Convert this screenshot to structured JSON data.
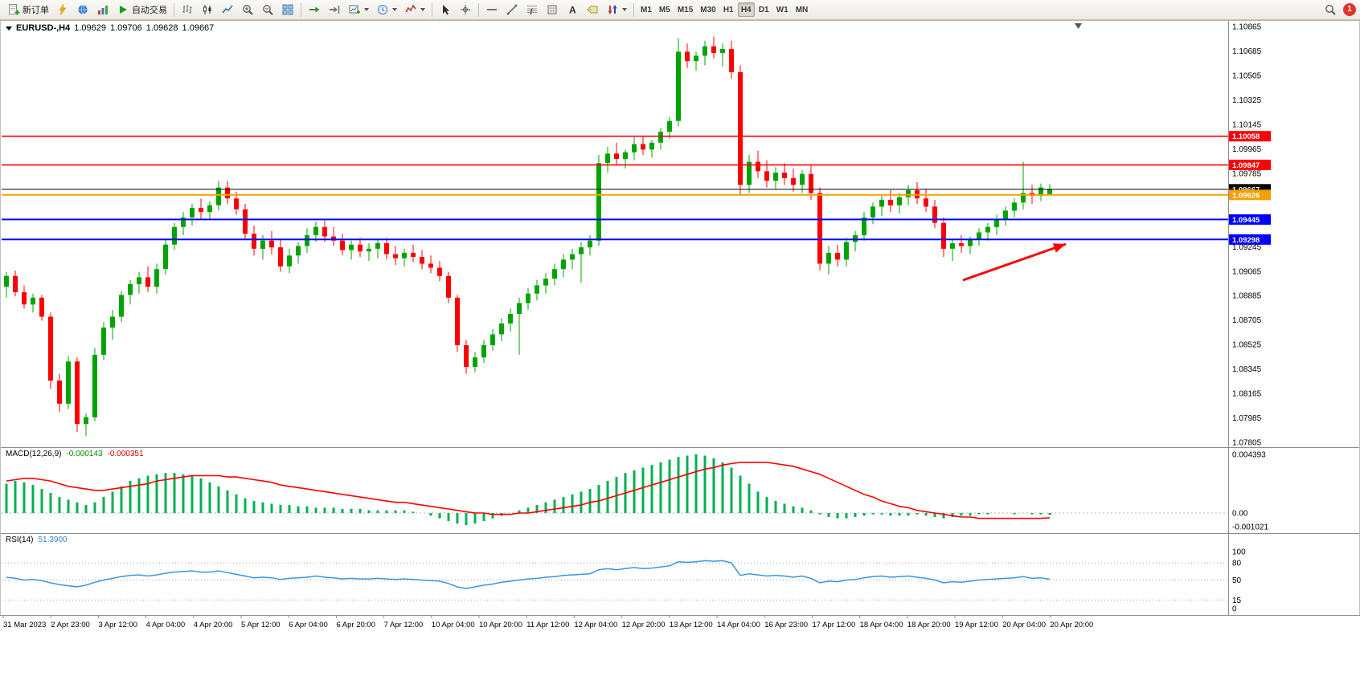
{
  "toolbar": {
    "new_order_label": "新订单",
    "autotrading_label": "自动交易",
    "timeframes": [
      "M1",
      "M5",
      "M15",
      "M30",
      "H1",
      "H4",
      "D1",
      "W1",
      "MN"
    ],
    "active_timeframe": "H4",
    "notification_count": "1",
    "icon_names": [
      "new-order-icon",
      "lightning-icon",
      "globe-icon",
      "signals-icon",
      "autotrading-icon",
      "bars-chart-icon",
      "candlestick-chart-icon",
      "line-chart-icon",
      "zoom-in-icon",
      "zoom-out-icon",
      "tile-windows-icon",
      "auto-scroll-icon",
      "chart-shift-icon",
      "new-chart-icon",
      "period-icon",
      "indicators-icon",
      "cursor-icon",
      "crosshair-icon",
      "horizontal-line-icon",
      "trendline-icon",
      "fibonacci-icon",
      "grid-icon",
      "text-icon",
      "label-icon",
      "arrows-icon",
      "search-icon"
    ]
  },
  "icons": {
    "text_tool": "A",
    "fibo_tool": "ƒ"
  },
  "chart": {
    "symbol_tf": "EURUSD-,H4",
    "open": "1.09629",
    "high": "1.09706",
    "low": "1.09628",
    "close": "1.09667"
  },
  "indicators": {
    "macd": {
      "name": "MACD(12,26,9)",
      "value_main": "-0.000143",
      "value_signal": "-0.000351"
    },
    "rsi": {
      "name": "RSI(14)",
      "value": "51.3900"
    }
  },
  "chart_data": {
    "type": "candlestick",
    "symbol": "EURUSD-",
    "timeframe": "H4",
    "current": {
      "open": 1.09629,
      "high": 1.09706,
      "low": 1.09628,
      "close": 1.09667
    },
    "colors": {
      "up": "#00a400",
      "down": "#ff0000",
      "macd_hist": "#00b050",
      "macd_signal": "#ff0000",
      "rsi": "#3a96dd"
    },
    "price_axis": {
      "top": 1.10883,
      "bottom": 1.07793,
      "ticks": [
        1.10865,
        1.10685,
        1.10505,
        1.10325,
        1.10145,
        1.09965,
        1.09785,
        1.09245,
        1.09065,
        1.08885,
        1.08705,
        1.08525,
        1.08345,
        1.08165,
        1.07985,
        1.07805
      ]
    },
    "price_lines": [
      {
        "price": 1.10058,
        "label": "1.10058",
        "color": "#ff0000",
        "width": 1.6
      },
      {
        "price": 1.09847,
        "label": "1.09847",
        "color": "#ff0000",
        "width": 1.6
      },
      {
        "price": 1.09667,
        "label": "1.09667",
        "color": "#000000",
        "width": 1
      },
      {
        "price": 1.09626,
        "label": "1.09626",
        "color": "#f5a000",
        "width": 2
      },
      {
        "price": 1.09445,
        "label": "1.09445",
        "color": "#0000ff",
        "width": 2
      },
      {
        "price": 1.09298,
        "label": "1.09298",
        "color": "#0000ff",
        "width": 2
      }
    ],
    "candles": [
      [
        1.0895,
        1.0906,
        1.0887,
        1.0903
      ],
      [
        1.0903,
        1.0907,
        1.0888,
        1.0891
      ],
      [
        1.0891,
        1.0896,
        1.0879,
        1.0882
      ],
      [
        1.0882,
        1.089,
        1.0876,
        1.0887
      ],
      [
        1.0887,
        1.0889,
        1.087,
        1.0873
      ],
      [
        1.0873,
        1.0876,
        1.082,
        1.0826
      ],
      [
        1.0826,
        1.0831,
        1.0803,
        1.0809
      ],
      [
        1.0809,
        1.0844,
        1.0805,
        1.084
      ],
      [
        1.084,
        1.0843,
        1.0788,
        1.0794
      ],
      [
        1.0794,
        1.0802,
        1.0785,
        1.0799
      ],
      [
        1.0799,
        1.085,
        1.0796,
        1.0845
      ],
      [
        1.0845,
        1.0869,
        1.0841,
        1.0865
      ],
      [
        1.0865,
        1.0878,
        1.0856,
        1.0873
      ],
      [
        1.0873,
        1.0892,
        1.0869,
        1.0889
      ],
      [
        1.0889,
        1.09,
        1.0882,
        1.0897
      ],
      [
        1.0897,
        1.0906,
        1.089,
        1.0902
      ],
      [
        1.0902,
        1.091,
        1.0891,
        1.0895
      ],
      [
        1.0895,
        1.0912,
        1.089,
        1.0908
      ],
      [
        1.0908,
        1.093,
        1.0904,
        1.0926
      ],
      [
        1.0926,
        1.0942,
        1.0922,
        1.0939
      ],
      [
        1.0939,
        1.095,
        1.0933,
        1.0946
      ],
      [
        1.0946,
        1.0956,
        1.094,
        1.0953
      ],
      [
        1.0953,
        1.096,
        1.0945,
        1.095
      ],
      [
        1.095,
        1.0958,
        1.0944,
        1.0955
      ],
      [
        1.0955,
        1.0973,
        1.0951,
        1.0968
      ],
      [
        1.0968,
        1.0973,
        1.0956,
        1.096
      ],
      [
        1.096,
        1.0965,
        1.0948,
        1.0952
      ],
      [
        1.0952,
        1.0956,
        1.093,
        1.0934
      ],
      [
        1.0934,
        1.094,
        1.0918,
        1.0923
      ],
      [
        1.0923,
        1.0933,
        1.0915,
        1.0929
      ],
      [
        1.0929,
        1.0936,
        1.0919,
        1.0924
      ],
      [
        1.0924,
        1.093,
        1.0906,
        1.091
      ],
      [
        1.091,
        1.0923,
        1.0905,
        1.0918
      ],
      [
        1.0918,
        1.0928,
        1.0912,
        1.0925
      ],
      [
        1.0925,
        1.0938,
        1.092,
        1.0933
      ],
      [
        1.0933,
        1.0943,
        1.0928,
        1.0939
      ],
      [
        1.0939,
        1.0944,
        1.0928,
        1.0932
      ],
      [
        1.0932,
        1.0939,
        1.0925,
        1.0929
      ],
      [
        1.0929,
        1.0934,
        1.0918,
        1.0922
      ],
      [
        1.0922,
        1.0929,
        1.0915,
        1.0926
      ],
      [
        1.0926,
        1.0931,
        1.0917,
        1.0921
      ],
      [
        1.0921,
        1.0927,
        1.0914,
        1.0923
      ],
      [
        1.0923,
        1.093,
        1.0916,
        1.0927
      ],
      [
        1.0927,
        1.0931,
        1.0915,
        1.0919
      ],
      [
        1.0919,
        1.0925,
        1.0911,
        1.0916
      ],
      [
        1.0916,
        1.0923,
        1.091,
        1.092
      ],
      [
        1.092,
        1.0926,
        1.0913,
        1.0917
      ],
      [
        1.0917,
        1.0922,
        1.0908,
        1.0912
      ],
      [
        1.0912,
        1.0918,
        1.0905,
        1.0909
      ],
      [
        1.0909,
        1.0914,
        1.0899,
        1.0903
      ],
      [
        1.0903,
        1.0906,
        1.0883,
        1.0887
      ],
      [
        1.0887,
        1.0889,
        1.0847,
        1.0852
      ],
      [
        1.0852,
        1.0856,
        1.0831,
        1.0836
      ],
      [
        1.0836,
        1.0847,
        1.0832,
        1.0843
      ],
      [
        1.0843,
        1.0856,
        1.0839,
        1.0852
      ],
      [
        1.0852,
        1.0864,
        1.0848,
        1.086
      ],
      [
        1.086,
        1.0872,
        1.0855,
        1.0868
      ],
      [
        1.0868,
        1.0879,
        1.0862,
        1.0875
      ],
      [
        1.0875,
        1.0887,
        1.0845,
        1.0883
      ],
      [
        1.0883,
        1.0894,
        1.0878,
        1.089
      ],
      [
        1.089,
        1.09,
        1.0885,
        1.0896
      ],
      [
        1.0896,
        1.0905,
        1.089,
        1.0901
      ],
      [
        1.0901,
        1.0912,
        1.0896,
        1.0908
      ],
      [
        1.0908,
        1.0919,
        1.0902,
        1.0915
      ],
      [
        1.0915,
        1.0923,
        1.0908,
        1.0919
      ],
      [
        1.0919,
        1.0928,
        1.0898,
        1.0924
      ],
      [
        1.0924,
        1.0933,
        1.0918,
        1.0929
      ],
      [
        1.0929,
        1.0992,
        1.0925,
        1.0986
      ],
      [
        1.0986,
        1.0998,
        1.0979,
        1.0993
      ],
      [
        1.0993,
        1.1001,
        1.0985,
        1.0989
      ],
      [
        1.0989,
        1.0996,
        1.0982,
        1.0994
      ],
      [
        1.0994,
        1.1005,
        1.0988,
        1.1
      ],
      [
        1.1,
        1.1006,
        1.0992,
        1.0996
      ],
      [
        1.0996,
        1.1003,
        1.099,
        1.1001
      ],
      [
        1.1001,
        1.1012,
        1.0996,
        1.1009
      ],
      [
        1.1009,
        1.102,
        1.1004,
        1.1017
      ],
      [
        1.1017,
        1.1078,
        1.1013,
        1.1068
      ],
      [
        1.1068,
        1.1074,
        1.1056,
        1.1061
      ],
      [
        1.1061,
        1.1068,
        1.1054,
        1.1065
      ],
      [
        1.1065,
        1.1076,
        1.1058,
        1.1072
      ],
      [
        1.1072,
        1.1079,
        1.1063,
        1.1067
      ],
      [
        1.1067,
        1.1074,
        1.1057,
        1.107
      ],
      [
        1.107,
        1.1076,
        1.1048,
        1.1053
      ],
      [
        1.1053,
        1.1058,
        1.0963,
        1.097
      ],
      [
        1.097,
        1.0992,
        1.0964,
        1.0987
      ],
      [
        1.0987,
        1.0995,
        1.0975,
        1.098
      ],
      [
        1.098,
        1.0988,
        1.0968,
        1.0973
      ],
      [
        1.0973,
        1.0983,
        1.0967,
        1.0979
      ],
      [
        1.0979,
        1.0986,
        1.097,
        1.0975
      ],
      [
        1.0975,
        1.0982,
        1.0965,
        1.097
      ],
      [
        1.097,
        1.0981,
        1.0964,
        1.0978
      ],
      [
        1.0978,
        1.0985,
        1.0959,
        1.0964
      ],
      [
        1.0964,
        1.0968,
        1.0907,
        1.0912
      ],
      [
        1.0912,
        1.0925,
        1.0904,
        1.092
      ],
      [
        1.092,
        1.0926,
        1.091,
        1.0915
      ],
      [
        1.0915,
        1.0931,
        1.091,
        1.0928
      ],
      [
        1.0928,
        1.0936,
        1.0921,
        1.0933
      ],
      [
        1.0933,
        1.095,
        1.0929,
        1.0946
      ],
      [
        1.0946,
        1.0957,
        1.0941,
        1.0954
      ],
      [
        1.0954,
        1.0962,
        1.0947,
        1.0959
      ],
      [
        1.0959,
        1.0966,
        1.095,
        1.0955
      ],
      [
        1.0955,
        1.0964,
        1.0949,
        1.0961
      ],
      [
        1.0961,
        1.097,
        1.0955,
        1.0966
      ],
      [
        1.0966,
        1.0972,
        1.0956,
        1.096
      ],
      [
        1.096,
        1.0967,
        1.095,
        1.0954
      ],
      [
        1.0954,
        1.0959,
        1.0938,
        1.0942
      ],
      [
        1.0942,
        1.0946,
        1.0917,
        1.0923
      ],
      [
        1.0923,
        1.093,
        1.0914,
        1.0927
      ],
      [
        1.0927,
        1.0933,
        1.092,
        1.0925
      ],
      [
        1.0925,
        1.0932,
        1.0919,
        1.093
      ],
      [
        1.093,
        1.0938,
        1.0925,
        1.0935
      ],
      [
        1.0935,
        1.0942,
        1.0929,
        1.0939
      ],
      [
        1.0939,
        1.0948,
        1.0933,
        1.0945
      ],
      [
        1.0945,
        1.0954,
        1.094,
        1.0951
      ],
      [
        1.0951,
        1.096,
        1.0946,
        1.0957
      ],
      [
        1.0957,
        1.0987,
        1.0952,
        1.0964
      ],
      [
        1.0964,
        1.097,
        1.0956,
        1.0962
      ],
      [
        1.0962,
        1.0971,
        1.0958,
        1.0968
      ],
      [
        1.09629,
        1.09706,
        1.09628,
        1.09667
      ]
    ],
    "macd": {
      "max": 0.004393,
      "min": -0.001021,
      "axis": [
        {
          "v": 0.004393,
          "label": "0.004393"
        },
        {
          "v": 0,
          "label": "0.00"
        },
        {
          "v": -0.001021,
          "label": "-0.001021"
        }
      ],
      "histogram": [
        0.0022,
        0.0024,
        0.0023,
        0.0021,
        0.0018,
        0.0015,
        0.0012,
        0.001,
        0.0008,
        0.0006,
        0.0008,
        0.0012,
        0.0016,
        0.002,
        0.0024,
        0.0026,
        0.0028,
        0.0029,
        0.003,
        0.003,
        0.0029,
        0.0028,
        0.0026,
        0.0023,
        0.002,
        0.0017,
        0.0014,
        0.0011,
        0.0009,
        0.0008,
        0.0007,
        0.0006,
        0.0006,
        0.0005,
        0.0005,
        0.0004,
        0.0004,
        0.0004,
        0.0003,
        0.0003,
        0.0003,
        0.0002,
        0.0002,
        0.0002,
        0.0002,
        0.0002,
        0.0001,
        0.0,
        -0.0002,
        -0.0004,
        -0.0006,
        -0.0008,
        -0.0009,
        -0.0008,
        -0.0006,
        -0.0004,
        -0.0002,
        0.0,
        0.0002,
        0.0004,
        0.0006,
        0.0008,
        0.001,
        0.0012,
        0.0014,
        0.0016,
        0.0018,
        0.0021,
        0.0024,
        0.0027,
        0.003,
        0.0032,
        0.0034,
        0.0036,
        0.0038,
        0.004,
        0.0042,
        0.0043,
        0.0044,
        0.0043,
        0.0041,
        0.0038,
        0.0034,
        0.0028,
        0.0022,
        0.0016,
        0.0012,
        0.0009,
        0.0007,
        0.0005,
        0.0004,
        0.0002,
        -0.0001,
        -0.0003,
        -0.0004,
        -0.0004,
        -0.0003,
        -0.0002,
        -0.0001,
        -0.0001,
        -0.0002,
        -0.0002,
        -0.0002,
        -0.0001,
        -0.0002,
        -0.0003,
        -0.0004,
        -0.0003,
        -0.0002,
        -0.0002,
        -0.0001,
        -0.0001,
        0.0,
        0.0,
        -0.0001,
        0.0,
        -0.0001,
        -0.0001,
        -0.000143
      ],
      "signal": [
        0.0024,
        0.0025,
        0.0026,
        0.0026,
        0.0025,
        0.0024,
        0.0022,
        0.002,
        0.0019,
        0.0018,
        0.0017,
        0.0017,
        0.0018,
        0.0019,
        0.002,
        0.0021,
        0.0022,
        0.0024,
        0.0025,
        0.0026,
        0.0027,
        0.0028,
        0.0028,
        0.0028,
        0.0028,
        0.0027,
        0.0027,
        0.0026,
        0.0025,
        0.0024,
        0.0023,
        0.0021,
        0.002,
        0.0019,
        0.0018,
        0.0017,
        0.0016,
        0.0015,
        0.0014,
        0.0013,
        0.0012,
        0.0011,
        0.001,
        0.0009,
        0.0008,
        0.0008,
        0.0007,
        0.0006,
        0.0005,
        0.0004,
        0.0003,
        0.0002,
        0.0001,
        0.0,
        0.0,
        -0.0001,
        -0.0001,
        -0.0001,
        0.0,
        0.0,
        0.0001,
        0.0002,
        0.0003,
        0.0004,
        0.0005,
        0.0006,
        0.0008,
        0.0009,
        0.0011,
        0.0013,
        0.0015,
        0.0017,
        0.0019,
        0.0021,
        0.0023,
        0.0025,
        0.0027,
        0.0029,
        0.0031,
        0.0033,
        0.0034,
        0.0036,
        0.0037,
        0.0038,
        0.0038,
        0.0038,
        0.0038,
        0.0037,
        0.0036,
        0.0035,
        0.0033,
        0.0031,
        0.0029,
        0.0026,
        0.0023,
        0.002,
        0.0017,
        0.0014,
        0.0012,
        0.0009,
        0.0007,
        0.0005,
        0.0004,
        0.0002,
        0.0001,
        0.0,
        -0.0001,
        -0.0002,
        -0.0003,
        -0.0003,
        -0.0004,
        -0.0004,
        -0.0004,
        -0.0004,
        -0.0004,
        -0.0004,
        -0.0004,
        -0.0004,
        -0.000351
      ]
    },
    "rsi": {
      "levels": [
        {
          "v": 100,
          "label": "100",
          "dashed": false
        },
        {
          "v": 80,
          "label": "80",
          "dashed": true
        },
        {
          "v": 50,
          "label": "50",
          "dashed": true
        },
        {
          "v": 15,
          "label": "15",
          "dashed": true
        },
        {
          "v": 0,
          "label": "0",
          "dashed": false
        }
      ],
      "values": [
        55,
        53,
        50,
        51,
        49,
        45,
        42,
        40,
        38,
        41,
        46,
        50,
        53,
        56,
        58,
        59,
        57,
        59,
        62,
        64,
        65,
        66,
        64,
        64,
        66,
        63,
        60,
        57,
        54,
        55,
        54,
        51,
        53,
        54,
        55,
        57,
        55,
        54,
        52,
        53,
        52,
        52,
        53,
        52,
        51,
        52,
        51,
        50,
        49,
        48,
        44,
        38,
        35,
        38,
        41,
        43,
        46,
        48,
        50,
        52,
        53,
        55,
        56,
        58,
        59,
        60,
        61,
        68,
        70,
        68,
        70,
        72,
        70,
        71,
        73,
        75,
        82,
        81,
        82,
        84,
        83,
        84,
        80,
        58,
        61,
        59,
        57,
        58,
        57,
        55,
        57,
        53,
        45,
        48,
        47,
        50,
        51,
        54,
        56,
        57,
        55,
        56,
        57,
        55,
        53,
        50,
        45,
        47,
        46,
        48,
        50,
        51,
        52,
        53,
        54,
        56,
        53,
        54,
        51.39
      ]
    },
    "time_axis": [
      "31 Mar 2023",
      "2 Apr 23:00",
      "3 Apr 12:00",
      "4 Apr 04:00",
      "4 Apr 20:00",
      "5 Apr 12:00",
      "6 Apr 04:00",
      "6 Apr 20:00",
      "7 Apr 12:00",
      "10 Apr 04:00",
      "10 Apr 20:00",
      "11 Apr 12:00",
      "12 Apr 04:00",
      "12 Apr 20:00",
      "13 Apr 12:00",
      "14 Apr 04:00",
      "16 Apr 23:00",
      "17 Apr 12:00",
      "18 Apr 04:00",
      "18 Apr 20:00",
      "19 Apr 12:00",
      "20 Apr 04:00",
      "20 Apr 20:00"
    ],
    "annotations": [
      {
        "type": "arrow",
        "from": [
          1198,
          349
        ],
        "to": [
          1326,
          304
        ],
        "color": "#ff0000"
      }
    ]
  }
}
